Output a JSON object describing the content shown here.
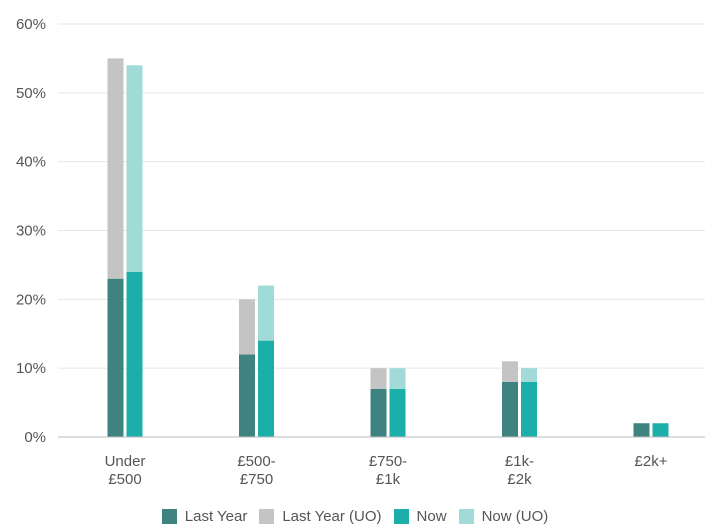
{
  "chart_data": {
    "type": "bar",
    "stacked": true,
    "grouped": true,
    "categories": [
      [
        "Under",
        "£500"
      ],
      [
        "£500-",
        "£750"
      ],
      [
        "£750-",
        "£1k"
      ],
      [
        "£1k-",
        "£2k"
      ],
      [
        "£2k+"
      ]
    ],
    "y_ticks": [
      "0%",
      "10%",
      "20%",
      "30%",
      "40%",
      "50%",
      "60%"
    ],
    "ylim": [
      0,
      60
    ],
    "grid": true,
    "legend_position": "bottom",
    "groups": [
      {
        "name": "Last Year",
        "segments": [
          {
            "name": "Last Year",
            "color": "#3f8380",
            "values": [
              23,
              12,
              7,
              8,
              2
            ]
          },
          {
            "name": "Last Year (UO)",
            "color": "#c4c4c4",
            "values": [
              32,
              8,
              3,
              3,
              0
            ]
          }
        ]
      },
      {
        "name": "Now",
        "segments": [
          {
            "name": "Now",
            "color": "#1cafaa",
            "values": [
              24,
              14,
              7,
              8,
              2
            ]
          },
          {
            "name": "Now (UO)",
            "color": "#a0dbd8",
            "values": [
              30,
              8,
              3,
              2,
              0
            ]
          }
        ]
      }
    ],
    "legend": [
      {
        "label": "Last Year",
        "color": "#3f8380"
      },
      {
        "label": "Last Year (UO)",
        "color": "#c4c4c4"
      },
      {
        "label": "Now",
        "color": "#1cafaa"
      },
      {
        "label": "Now (UO)",
        "color": "#a0dbd8"
      }
    ]
  }
}
